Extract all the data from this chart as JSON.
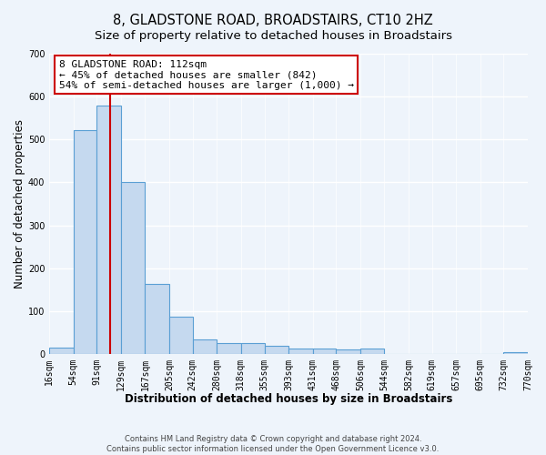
{
  "title": "8, GLADSTONE ROAD, BROADSTAIRS, CT10 2HZ",
  "subtitle": "Size of property relative to detached houses in Broadstairs",
  "xlabel": "Distribution of detached houses by size in Broadstairs",
  "ylabel": "Number of detached properties",
  "bin_edges": [
    16,
    54,
    91,
    129,
    167,
    205,
    242,
    280,
    318,
    355,
    393,
    431,
    468,
    506,
    544,
    582,
    619,
    657,
    695,
    732,
    770
  ],
  "bar_heights": [
    15,
    522,
    580,
    400,
    163,
    87,
    35,
    25,
    25,
    20,
    12,
    12,
    10,
    12,
    0,
    0,
    0,
    0,
    0,
    5
  ],
  "bar_color": "#c5d9ef",
  "bar_edge_color": "#5a9fd4",
  "property_line_x": 112,
  "property_line_color": "#cc0000",
  "annotation_line1": "8 GLADSTONE ROAD: 112sqm",
  "annotation_line2": "← 45% of detached houses are smaller (842)",
  "annotation_line3": "54% of semi-detached houses are larger (1,000) →",
  "annotation_box_color": "#ffffff",
  "annotation_box_edge": "#cc0000",
  "ylim": [
    0,
    700
  ],
  "yticks": [
    0,
    100,
    200,
    300,
    400,
    500,
    600,
    700
  ],
  "tick_labels": [
    "16sqm",
    "54sqm",
    "91sqm",
    "129sqm",
    "167sqm",
    "205sqm",
    "242sqm",
    "280sqm",
    "318sqm",
    "355sqm",
    "393sqm",
    "431sqm",
    "468sqm",
    "506sqm",
    "544sqm",
    "582sqm",
    "619sqm",
    "657sqm",
    "695sqm",
    "732sqm",
    "770sqm"
  ],
  "footer1": "Contains HM Land Registry data © Crown copyright and database right 2024.",
  "footer2": "Contains public sector information licensed under the Open Government Licence v3.0.",
  "background_color": "#eef4fb",
  "plot_bg_color": "#eef4fb",
  "grid_color": "#ffffff",
  "title_fontsize": 10.5,
  "subtitle_fontsize": 9.5,
  "axis_label_fontsize": 8.5,
  "tick_fontsize": 7,
  "footer_fontsize": 6,
  "annotation_fontsize": 8
}
